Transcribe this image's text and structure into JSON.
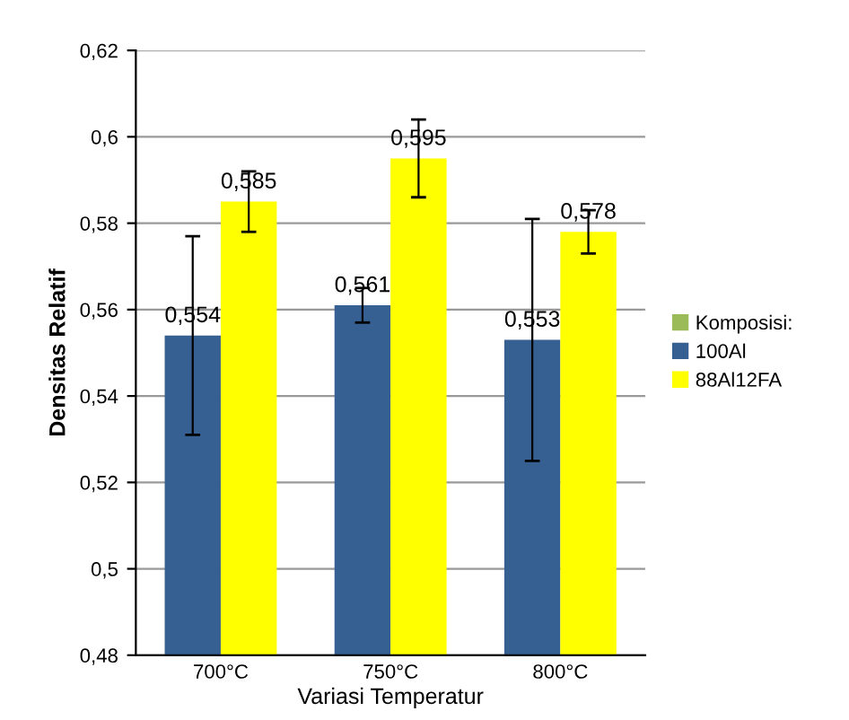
{
  "chart_data": {
    "type": "bar",
    "xlabel": "Variasi Temperatur",
    "ylabel": "Densitas Relatif",
    "categories": [
      "700°C",
      "750°C",
      "800°C"
    ],
    "series": [
      {
        "name": "Komposisi:",
        "color": "#9bbb59",
        "values": [
          null,
          null,
          null
        ]
      },
      {
        "name": "100Al",
        "color": "#376092",
        "values": [
          0.554,
          0.561,
          0.553
        ],
        "errors": [
          0.023,
          0.004,
          0.028
        ],
        "value_labels": [
          "0,554",
          "0,561",
          "0,553"
        ]
      },
      {
        "name": "88Al12FA",
        "color": "#ffff00",
        "values": [
          0.585,
          0.595,
          0.578
        ],
        "errors": [
          0.007,
          0.009,
          0.005
        ],
        "value_labels": [
          "0,585",
          "0,595",
          "0,578"
        ]
      }
    ],
    "ylim": [
      0.48,
      0.62
    ],
    "yticks": [
      {
        "value": 0.48,
        "label": "0,48"
      },
      {
        "value": 0.5,
        "label": "0,5"
      },
      {
        "value": 0.52,
        "label": "0,52"
      },
      {
        "value": 0.54,
        "label": "0,54"
      },
      {
        "value": 0.56,
        "label": "0,56"
      },
      {
        "value": 0.58,
        "label": "0,58"
      },
      {
        "value": 0.6,
        "label": "0,6"
      },
      {
        "value": 0.62,
        "label": "0,62"
      }
    ],
    "grid": "y",
    "legend": "right"
  }
}
